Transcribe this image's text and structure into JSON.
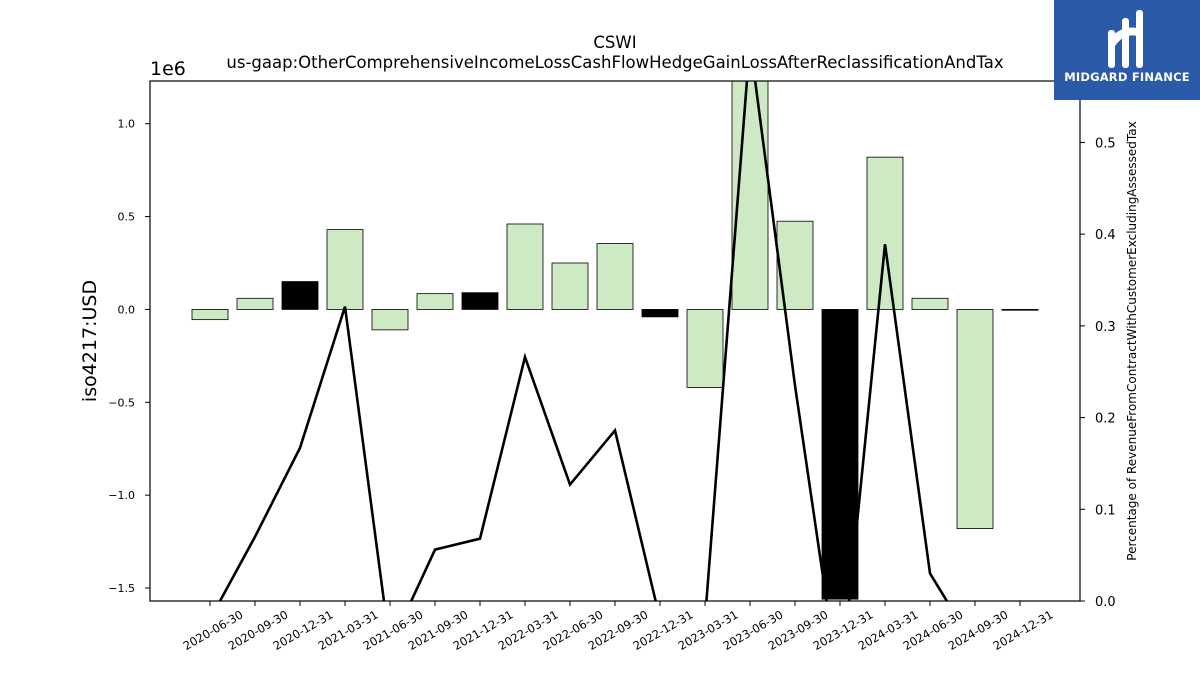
{
  "header": {
    "ticker": "CSWI",
    "concept": "us-gaap:OtherComprehensiveIncomeLossCashFlowHedgeGainLossAfterReclassificationAndTax"
  },
  "logo": {
    "text": "MIDGARD FINANCE",
    "background": "#2b5aa8"
  },
  "colors": {
    "bar_positive": "#cdeac5",
    "bar_negative_highlight": "#000000",
    "line": "#000000"
  },
  "chart_data": {
    "type": "bar",
    "categories": [
      "2020-06-30",
      "2020-09-30",
      "2020-12-31",
      "2021-03-31",
      "2021-06-30",
      "2021-09-30",
      "2021-12-31",
      "2022-03-31",
      "2022-06-30",
      "2022-09-30",
      "2022-12-31",
      "2023-03-31",
      "2023-06-30",
      "2023-09-30",
      "2023-12-31",
      "2024-03-31",
      "2024-06-30",
      "2024-09-30",
      "2024-12-31"
    ],
    "series": [
      {
        "axis": "left",
        "type": "bar",
        "values": [
          -55000,
          60000,
          150000,
          430000,
          -110000,
          85000,
          90000,
          460000,
          250000,
          355000,
          -40000,
          -420000,
          1250000,
          475000,
          -1560000,
          820000,
          60000,
          -1180000,
          0
        ],
        "highlight": [
          false,
          false,
          true,
          false,
          false,
          false,
          true,
          false,
          false,
          false,
          true,
          false,
          false,
          false,
          true,
          false,
          false,
          false,
          false
        ]
      },
      {
        "axis": "right",
        "type": "line",
        "values": [
          -0.02,
          0.07,
          0.167,
          0.321,
          -0.05,
          0.056,
          0.068,
          0.266,
          0.127,
          0.186,
          -0.02,
          -0.02,
          0.61,
          0.235,
          -0.1,
          0.389,
          0.03,
          -0.05,
          0.0
        ]
      }
    ],
    "title": "CSWI\nus-gaap:OtherComprehensiveIncomeLossCashFlowHedgeGainLossAfterReclassificationAndTax",
    "ylabel": "iso4217:USD",
    "y_offset_label": "1e6",
    "y2label": "Percentage of RevenueFromContractWithCustomerExcludingAssessedTax",
    "ylim": [
      -1570000,
      1230000
    ],
    "y2lim": [
      0.0,
      0.567
    ],
    "yticks": [
      -1500000,
      -1000000,
      -500000,
      0,
      500000,
      1000000
    ],
    "yticklabels": [
      "−1.5",
      "−1.0",
      "−0.5",
      "0.0",
      "0.5",
      "1.0"
    ],
    "y2ticks": [
      0.0,
      0.1,
      0.2,
      0.3,
      0.4,
      0.5
    ],
    "y2ticklabels": [
      "0.0",
      "0.1",
      "0.2",
      "0.3",
      "0.4",
      "0.5"
    ],
    "grid": false,
    "legend": "none"
  }
}
